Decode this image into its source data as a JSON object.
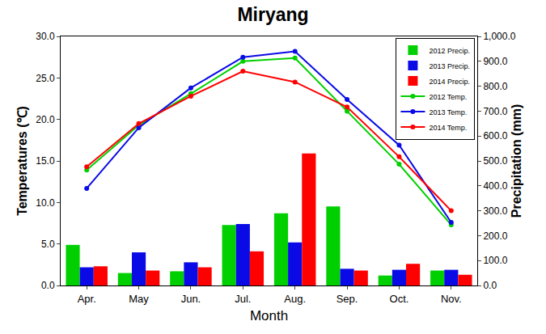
{
  "chart_data": {
    "type": "bar",
    "title": "Miryang",
    "x_label": "Month",
    "y_label": "Temperatures (℃)",
    "y2_label": "Precipitation (mm)",
    "categories": [
      "Apr.",
      "May",
      "Jun.",
      "Jul.",
      "Aug.",
      "Sep.",
      "Oct.",
      "Nov."
    ],
    "series": [
      {
        "name": "2012 Precip.",
        "type": "bar",
        "axis": "y2",
        "color": "#00d000",
        "values": [
          163,
          50,
          57,
          243,
          290,
          317,
          40,
          60
        ]
      },
      {
        "name": "2013 Precip.",
        "type": "bar",
        "axis": "y2",
        "color": "#0a0ae6",
        "values": [
          73,
          133,
          93,
          247,
          173,
          67,
          63,
          63
        ]
      },
      {
        "name": "2014 Precip.",
        "type": "bar",
        "axis": "y2",
        "color": "#ff0000",
        "values": [
          77,
          60,
          73,
          137,
          530,
          60,
          87,
          43
        ]
      },
      {
        "name": "2012 Temp.",
        "type": "line",
        "axis": "y",
        "marker": "circle",
        "color": "#00d000",
        "values": [
          13.9,
          19.3,
          23.1,
          27.0,
          27.4,
          21.0,
          14.6,
          7.3
        ]
      },
      {
        "name": "2013 Temp.",
        "type": "line",
        "axis": "y",
        "marker": "circle",
        "color": "#0a0ae6",
        "values": [
          11.7,
          19.0,
          23.8,
          27.5,
          28.2,
          22.4,
          16.9,
          7.6
        ]
      },
      {
        "name": "2014 Temp.",
        "type": "line",
        "axis": "y",
        "marker": "circle",
        "color": "#ff0000",
        "values": [
          14.3,
          19.5,
          22.8,
          25.8,
          24.5,
          21.5,
          15.5,
          9.0
        ]
      }
    ],
    "ylim": [
      0,
      30
    ],
    "yticks": [
      {
        "value": 0,
        "label": "0.0"
      },
      {
        "value": 5,
        "label": "5.0"
      },
      {
        "value": 10,
        "label": "10.0"
      },
      {
        "value": 15,
        "label": "15.0"
      },
      {
        "value": 20,
        "label": "20.0"
      },
      {
        "value": 25,
        "label": "25.0"
      },
      {
        "value": 30,
        "label": "30.0"
      }
    ],
    "y2lim": [
      0,
      1000
    ],
    "y2ticks": [
      {
        "value": 0,
        "label": "0.0"
      },
      {
        "value": 100,
        "label": "100.0"
      },
      {
        "value": 200,
        "label": "200.0"
      },
      {
        "value": 300,
        "label": "300.0"
      },
      {
        "value": 400,
        "label": "400.0"
      },
      {
        "value": 500,
        "label": "500.0"
      },
      {
        "value": 600,
        "label": "600.0"
      },
      {
        "value": 700,
        "label": "700.0"
      },
      {
        "value": 800,
        "label": "800.0"
      },
      {
        "value": 900,
        "label": "900.0"
      },
      {
        "value": 1000,
        "label": "1,000.0"
      }
    ],
    "grid": false,
    "legend": "top-right"
  }
}
